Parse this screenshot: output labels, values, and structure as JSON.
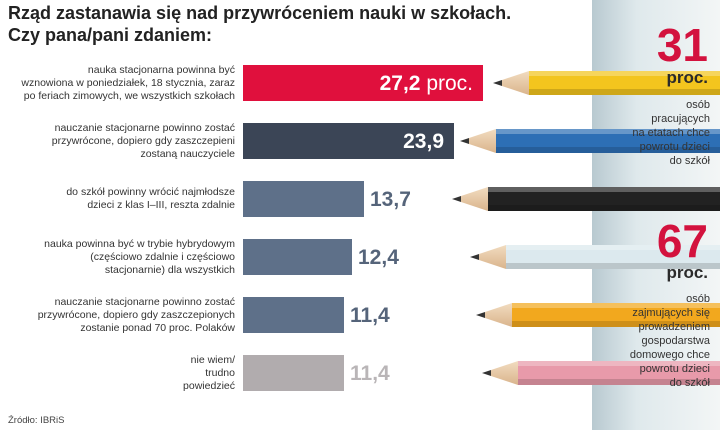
{
  "chart_data": {
    "type": "bar",
    "title": [
      "Rząd zastanawia się nad przywróceniem nauki w szkołach.",
      "Czy pana/pani zdaniem:"
    ],
    "categories": [
      [
        "nauka stacjonarna powinna być",
        "wznowiona w poniedziałek, 18 stycznia, zaraz",
        "po feriach zimowych, we wszystkich szkołach"
      ],
      [
        "nauczanie stacjonarne powinno zostać",
        "przywrócone, dopiero gdy zaszczepieni",
        "zostaną nauczyciele"
      ],
      [
        "do szkół powinny wrócić najmłodsze",
        "dzieci z klas I–III, reszta zdalnie"
      ],
      [
        "nauka powinna być w trybie hybrydowym",
        "(częściowo zdalnie i częściowo",
        "stacjonarnie) dla wszystkich"
      ],
      [
        "nauczanie stacjonarne powinno zostać",
        "przywrócone, dopiero gdy zaszczepionych",
        "zostanie ponad 70 proc. Polaków"
      ],
      [
        "nie wiem/",
        "trudno",
        "powiedzieć"
      ]
    ],
    "values": [
      27.2,
      23.9,
      13.7,
      12.4,
      11.4,
      11.4
    ],
    "value_labels": [
      "27,2",
      "23,9",
      "13,7",
      "12,4",
      "11,4",
      "11,4"
    ],
    "value_unit": "proc.",
    "bar_colors": [
      "#e0103d",
      "#3b4556",
      "#5e7089",
      "#5e7089",
      "#5e7089",
      "#b1acae"
    ],
    "value_label_colors": [
      "#ffffff",
      "#ffffff",
      "#55647a",
      "#55647a",
      "#55647a",
      "#b9b5b7"
    ],
    "xlim": [
      0,
      27.2
    ],
    "grid": false,
    "source": "Źródło: IBRiS"
  },
  "side_panel": {
    "stat1": {
      "number": "31",
      "unit": "proc.",
      "desc": [
        "osób",
        "pracujących",
        "na etatach chce",
        "powrotu dzieci",
        "do szkół"
      ]
    },
    "stat2": {
      "number": "67",
      "unit": "proc.",
      "desc": [
        "osób",
        "zajmujących się",
        "prowadzeniem",
        "gospodarstwa",
        "domowego chce",
        "powrotu dzieci",
        "do szkół"
      ]
    },
    "accent_color": "#d3123e"
  },
  "pencils": {
    "colors": [
      "#f3c51e",
      "#2d6fb5",
      "#222222",
      "#dce9ee",
      "#f2a81e",
      "#e89aaa"
    ]
  }
}
